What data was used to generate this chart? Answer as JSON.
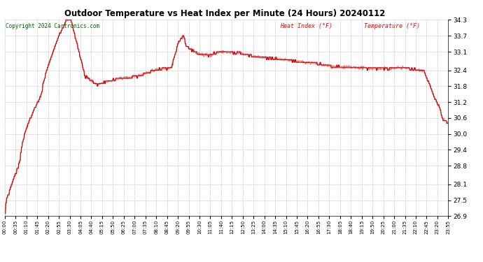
{
  "title": "Outdoor Temperature vs Heat Index per Minute (24 Hours) 20240112",
  "copyright": "Copyright 2024 Cartronics.com",
  "legend_heat": "Heat Index (°F)",
  "legend_temp": "Temperature (°F)",
  "legend_heat_color": "#ff0000",
  "legend_temp_color": "#ff0000",
  "line_color": "#cc0000",
  "background_color": "#ffffff",
  "grid_color": "#bbbbbb",
  "title_color": "#000000",
  "copyright_color": "#006400",
  "ylim_min": 26.9,
  "ylim_max": 34.3,
  "yticks": [
    34.3,
    33.7,
    33.1,
    32.4,
    31.8,
    31.2,
    30.6,
    30.0,
    29.4,
    28.8,
    28.1,
    27.5,
    26.9
  ],
  "xtick_labels": [
    "00:00",
    "00:35",
    "01:10",
    "01:45",
    "02:20",
    "02:55",
    "03:30",
    "04:05",
    "04:40",
    "05:15",
    "05:50",
    "06:25",
    "07:00",
    "07:35",
    "08:10",
    "08:45",
    "09:20",
    "09:55",
    "10:30",
    "11:05",
    "11:40",
    "12:15",
    "12:50",
    "13:25",
    "14:00",
    "14:35",
    "15:10",
    "15:45",
    "16:20",
    "16:55",
    "17:30",
    "18:05",
    "18:40",
    "19:15",
    "19:50",
    "20:25",
    "21:00",
    "21:35",
    "22:10",
    "22:45",
    "23:20",
    "23:55"
  ],
  "n_points": 1440
}
